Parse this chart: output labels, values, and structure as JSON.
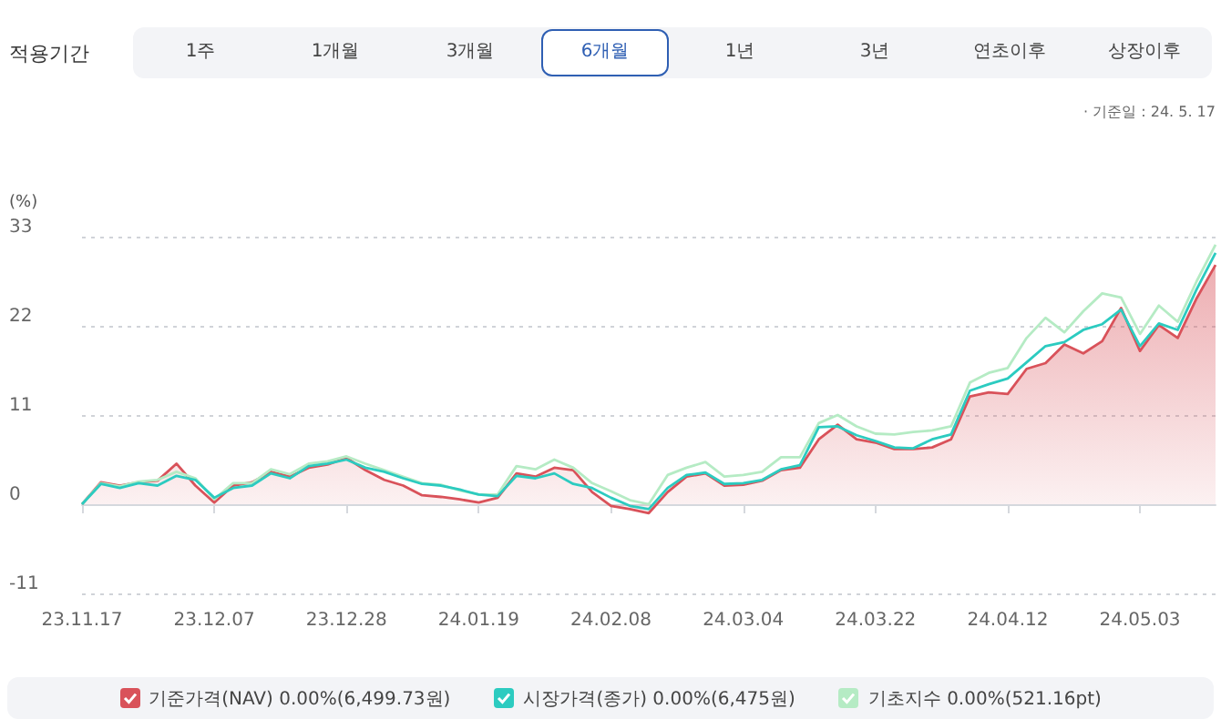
{
  "chart_data": {
    "type": "line",
    "annotations": [
      "적용기간",
      "1주",
      "1개월",
      "3개월",
      "6개월",
      "1년",
      "3년",
      "연초이후",
      "상장이후",
      "· 기준일 : 24. 5. 17"
    ],
    "ylabel": "(%)",
    "categories": [
      "23.11.17",
      null,
      null,
      null,
      null,
      null,
      null,
      "23.12.07",
      null,
      null,
      null,
      null,
      null,
      null,
      "23.12.28",
      null,
      null,
      null,
      null,
      null,
      null,
      "24.01.19",
      null,
      null,
      null,
      null,
      null,
      null,
      "24.02.08",
      null,
      null,
      null,
      null,
      null,
      null,
      "24.03.04",
      null,
      null,
      null,
      null,
      null,
      null,
      "24.03.22",
      null,
      null,
      null,
      null,
      null,
      null,
      "24.04.12",
      null,
      null,
      null,
      null,
      null,
      null,
      "24.05.03",
      null,
      null,
      null,
      null
    ],
    "series": [
      {
        "name": "기초지수 0.00%(521.16pt)",
        "color": "#b5ebc4",
        "values": [
          0,
          2.6,
          2.2,
          2.8,
          3.0,
          4.0,
          3.2,
          0.6,
          2.6,
          2.6,
          4.3,
          3.7,
          5.0,
          5.3,
          5.9,
          5.0,
          4.2,
          3.4,
          2.6,
          2.4,
          1.7,
          1.2,
          1.2,
          4.7,
          4.3,
          5.5,
          4.5,
          2.6,
          1.6,
          0.5,
          0,
          3.6,
          4.5,
          5.2,
          3.4,
          3.6,
          4.0,
          5.8,
          5.8,
          10.0,
          11.0,
          9.6,
          8.7,
          8.6,
          8.9,
          9.1,
          9.6,
          15.0,
          16.2,
          16.8,
          20.5,
          23.0,
          21.2,
          23.8,
          26.0,
          25.5,
          21.0,
          24.5,
          22.5,
          27.5,
          32.0
        ]
      },
      {
        "name": "시장가격(종가) 0.00%(6,475원)",
        "color": "#2ccbc0",
        "values": [
          0,
          2.5,
          2.0,
          2.6,
          2.3,
          3.5,
          3.0,
          0.8,
          2.0,
          2.3,
          3.8,
          3.2,
          4.7,
          5.0,
          5.5,
          4.5,
          4.0,
          3.2,
          2.5,
          2.3,
          1.8,
          1.2,
          1.0,
          3.5,
          3.2,
          3.8,
          2.5,
          2.0,
          0.8,
          -0.2,
          -0.6,
          2.0,
          3.6,
          3.9,
          2.5,
          2.6,
          3.0,
          4.3,
          4.8,
          9.5,
          9.6,
          8.5,
          7.8,
          7.0,
          6.9,
          8.0,
          8.6,
          14.0,
          14.8,
          15.5,
          17.5,
          19.5,
          20.0,
          21.5,
          22.2,
          24.0,
          19.5,
          22.3,
          21.5,
          26.5,
          31.0
        ]
      },
      {
        "name": "기준가격(NAV) 0.00%(6,499.73원)",
        "type": "area",
        "color": "#d9525a",
        "values": [
          0,
          2.7,
          2.3,
          2.7,
          2.9,
          5.0,
          2.3,
          0.2,
          2.3,
          2.7,
          4.0,
          3.4,
          4.5,
          4.9,
          5.7,
          4.2,
          3.0,
          2.3,
          1.1,
          0.9,
          0.6,
          0.2,
          0.8,
          3.8,
          3.4,
          4.5,
          4.2,
          1.5,
          -0.2,
          -0.6,
          -1.1,
          1.5,
          3.4,
          3.8,
          2.3,
          2.4,
          2.9,
          4.2,
          4.5,
          8.0,
          9.8,
          8.0,
          7.6,
          6.8,
          6.8,
          7.0,
          8.0,
          13.3,
          13.8,
          13.6,
          16.7,
          17.4,
          19.7,
          18.6,
          20.1,
          24.2,
          18.9,
          22.1,
          20.5,
          25.4,
          29.5
        ]
      }
    ],
    "ylim": [
      -11,
      33
    ],
    "yticks": [
      -11,
      0,
      11,
      22,
      33
    ],
    "grid": "y",
    "legend": "bottom",
    "marker": "none",
    "line_style": "solid"
  }
}
